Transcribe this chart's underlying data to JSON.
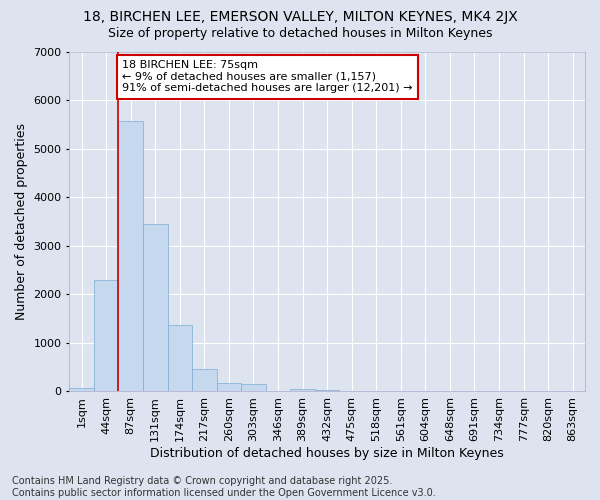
{
  "title": "18, BIRCHEN LEE, EMERSON VALLEY, MILTON KEYNES, MK4 2JX",
  "subtitle": "Size of property relative to detached houses in Milton Keynes",
  "xlabel": "Distribution of detached houses by size in Milton Keynes",
  "ylabel": "Number of detached properties",
  "bar_color": "#c5d8ee",
  "bar_edge_color": "#7aadd4",
  "background_color": "#dde4ef",
  "grid_color": "#ffffff",
  "categories": [
    "1sqm",
    "44sqm",
    "87sqm",
    "131sqm",
    "174sqm",
    "217sqm",
    "260sqm",
    "303sqm",
    "346sqm",
    "389sqm",
    "432sqm",
    "475sqm",
    "518sqm",
    "561sqm",
    "604sqm",
    "648sqm",
    "691sqm",
    "734sqm",
    "777sqm",
    "820sqm",
    "863sqm"
  ],
  "values": [
    75,
    2300,
    5560,
    3450,
    1360,
    460,
    175,
    150,
    0,
    55,
    30,
    0,
    0,
    0,
    0,
    0,
    0,
    0,
    0,
    0,
    0
  ],
  "ylim": [
    0,
    7000
  ],
  "yticks": [
    0,
    1000,
    2000,
    3000,
    4000,
    5000,
    6000,
    7000
  ],
  "vline_index": 2,
  "vline_color": "#cc0000",
  "annotation_text": "18 BIRCHEN LEE: 75sqm\n← 9% of detached houses are smaller (1,157)\n91% of semi-detached houses are larger (12,201) →",
  "annotation_box_color": "#ffffff",
  "annotation_box_edge": "#cc0000",
  "footer_line1": "Contains HM Land Registry data © Crown copyright and database right 2025.",
  "footer_line2": "Contains public sector information licensed under the Open Government Licence v3.0.",
  "title_fontsize": 10,
  "subtitle_fontsize": 9,
  "axis_label_fontsize": 9,
  "tick_fontsize": 8,
  "annotation_fontsize": 8,
  "footer_fontsize": 7
}
